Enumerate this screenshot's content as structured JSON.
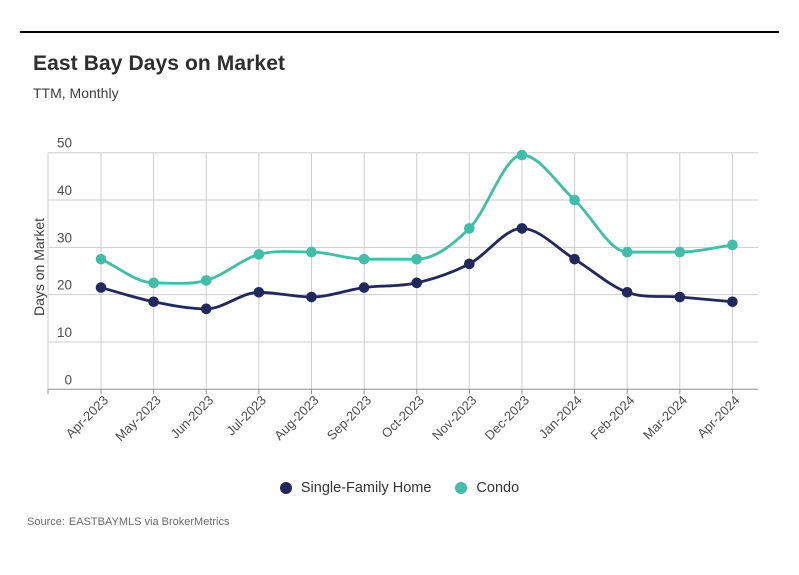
{
  "header": {
    "title": "East Bay Days on Market",
    "subtitle": "TTM, Monthly"
  },
  "source": {
    "label": "Source:",
    "text": "EASTBAYMLS via BrokerMetrics"
  },
  "chart_data": {
    "type": "line",
    "title": "East Bay Days on Market",
    "subtitle": "TTM, Monthly",
    "xlabel": "",
    "ylabel": "Days on Market",
    "categories": [
      "Apr-2023",
      "May-2023",
      "Jun-2023",
      "Jul-2023",
      "Aug-2023",
      "Sep-2023",
      "Oct-2023",
      "Nov-2023",
      "Dec-2023",
      "Jan-2024",
      "Feb-2024",
      "Mar-2024",
      "Apr-2024"
    ],
    "series": [
      {
        "name": "Single-Family Home",
        "color": "#21295C",
        "values": [
          21.5,
          18.5,
          17,
          20.5,
          19.5,
          21.5,
          22.5,
          26.5,
          34,
          27.5,
          20.5,
          19.5,
          18.5
        ]
      },
      {
        "name": "Condo",
        "color": "#41BDA8",
        "values": [
          27.5,
          22.5,
          23,
          28.5,
          29,
          27.5,
          27.5,
          34,
          49.5,
          40,
          29,
          29,
          30.5
        ]
      }
    ],
    "ylim": [
      0,
      50
    ],
    "yticks": [
      0,
      10,
      20,
      30,
      40,
      50
    ],
    "grid": true,
    "legend_position": "bottom",
    "colors": {
      "gridline": "#cdcdcd",
      "axis": "#8f8f8f",
      "tick_label": "#4d4d4d"
    }
  }
}
